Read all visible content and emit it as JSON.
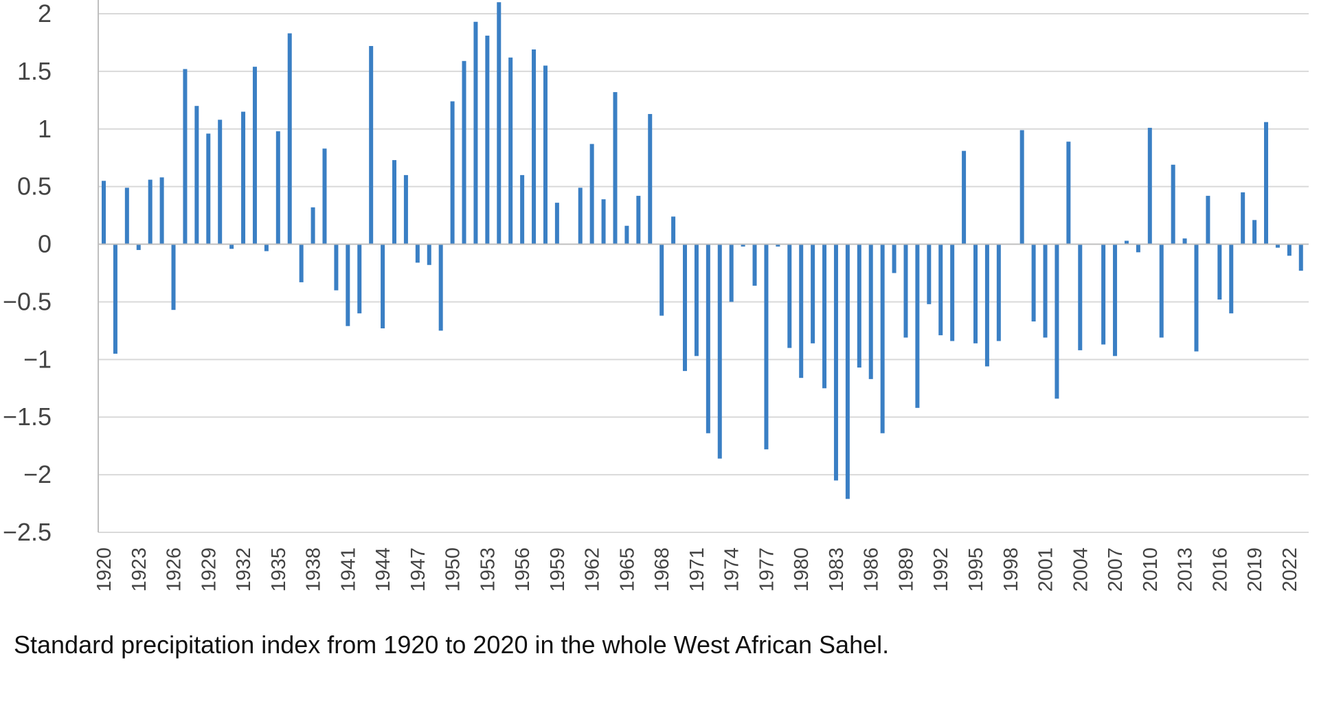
{
  "caption": "Standard precipitation index from 1920 to 2020 in the whole West African Sahel.",
  "colors": {
    "bar": "#3a7fc4",
    "grid": "#d9d9d9",
    "axis": "#bfbfbf"
  },
  "chart_data": {
    "type": "bar",
    "title": "",
    "xlabel": "",
    "ylabel": "",
    "ylim": [
      -2.5,
      2
    ],
    "yticks": [
      2,
      1.5,
      1,
      0.5,
      0,
      -0.5,
      -1,
      -1.5,
      -2,
      -2.5
    ],
    "ytick_labels": [
      "2",
      "1.5",
      "1",
      "0.5",
      "0",
      "−0.5",
      "−1",
      "−1.5",
      "−2",
      "−2.5"
    ],
    "xtick_labels": [
      "1920",
      "1923",
      "1926",
      "1929",
      "1932",
      "1935",
      "1938",
      "1941",
      "1944",
      "1947",
      "1950",
      "1953",
      "1956",
      "1959",
      "1962",
      "1965",
      "1968",
      "1971",
      "1974",
      "1977",
      "1980",
      "1983",
      "1986",
      "1989",
      "1992",
      "1995",
      "1998",
      "2001",
      "2004",
      "2007",
      "2010",
      "2013",
      "2016",
      "2019",
      "2022"
    ],
    "grid": true,
    "legend": "none",
    "x": [
      1920,
      1921,
      1922,
      1923,
      1924,
      1925,
      1926,
      1927,
      1928,
      1929,
      1930,
      1931,
      1932,
      1933,
      1934,
      1935,
      1936,
      1937,
      1938,
      1939,
      1940,
      1941,
      1942,
      1943,
      1944,
      1945,
      1946,
      1947,
      1948,
      1949,
      1950,
      1951,
      1952,
      1953,
      1954,
      1955,
      1956,
      1957,
      1958,
      1959,
      1960,
      1961,
      1962,
      1963,
      1964,
      1965,
      1966,
      1967,
      1968,
      1969,
      1970,
      1971,
      1972,
      1973,
      1974,
      1975,
      1976,
      1977,
      1978,
      1979,
      1980,
      1981,
      1982,
      1983,
      1984,
      1985,
      1986,
      1987,
      1988,
      1989,
      1990,
      1991,
      1992,
      1993,
      1994,
      1995,
      1996,
      1997,
      1998,
      1999,
      2000,
      2001,
      2002,
      2003,
      2004,
      2005,
      2006,
      2007,
      2008,
      2009,
      2010,
      2011,
      2012,
      2013,
      2014,
      2015,
      2016,
      2017,
      2018,
      2019,
      2020,
      2021,
      2022,
      2023
    ],
    "values": [
      0.55,
      -0.95,
      0.49,
      -0.05,
      0.56,
      0.58,
      -0.57,
      1.52,
      1.2,
      0.96,
      1.08,
      -0.04,
      1.15,
      1.54,
      -0.06,
      0.98,
      1.83,
      -0.33,
      0.32,
      0.83,
      -0.4,
      -0.71,
      -0.6,
      1.72,
      -0.73,
      0.73,
      0.6,
      -0.16,
      -0.18,
      -0.75,
      1.24,
      1.59,
      1.93,
      1.81,
      2.1,
      1.62,
      0.6,
      1.69,
      1.55,
      0.36,
      0,
      0.49,
      0.87,
      0.39,
      1.32,
      0.16,
      0.42,
      1.13,
      -0.62,
      0.24,
      -1.1,
      -0.97,
      -1.64,
      -1.86,
      -0.5,
      -0.02,
      -0.36,
      -1.78,
      -0.02,
      -0.9,
      -1.16,
      -0.86,
      -1.25,
      -2.05,
      -2.21,
      -1.07,
      -1.17,
      -1.64,
      -0.25,
      -0.81,
      -1.42,
      -0.52,
      -0.79,
      -0.84,
      0.81,
      -0.86,
      -1.06,
      -0.84,
      0,
      0.99,
      -0.67,
      -0.81,
      -1.34,
      0.89,
      -0.92,
      0,
      -0.87,
      -0.97,
      0.03,
      -0.07,
      1.01,
      -0.81,
      0.69,
      0.05,
      -0.93,
      0.42,
      -0.48,
      -0.6,
      0.45,
      0.21,
      1.06,
      -0.03,
      -0.1,
      -0.23
    ]
  }
}
